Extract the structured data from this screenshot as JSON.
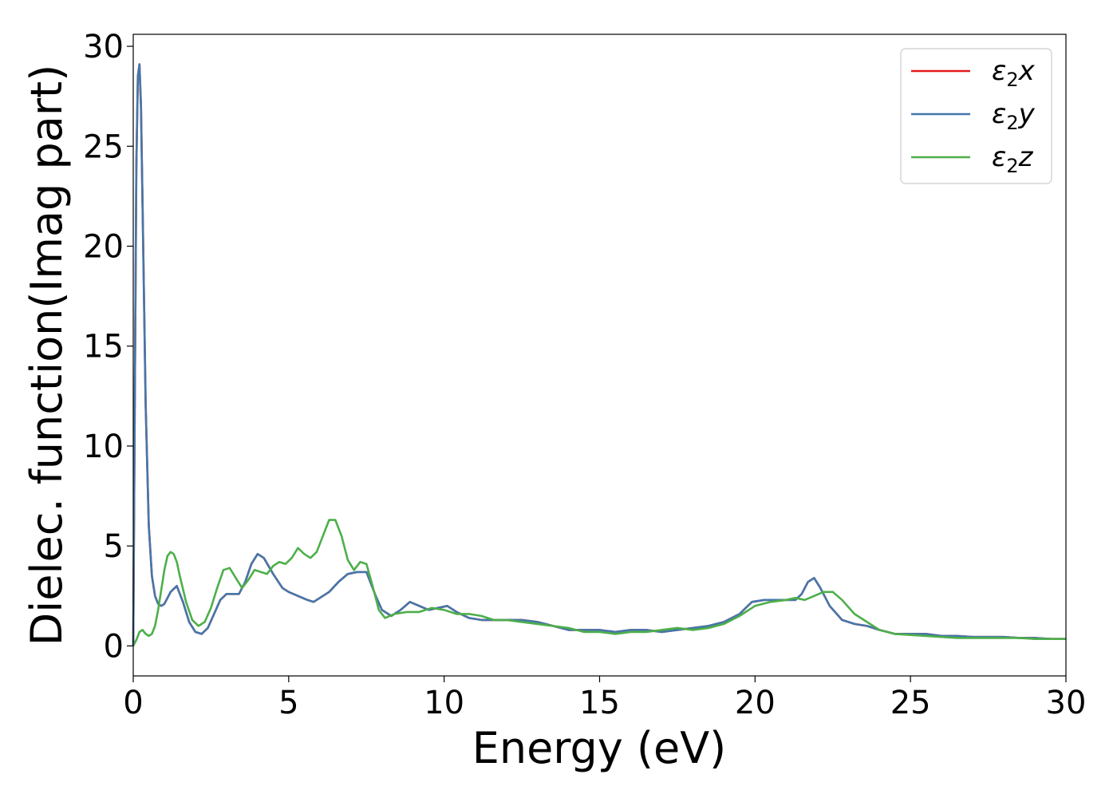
{
  "chart_data": {
    "type": "line",
    "title": "",
    "xlabel": "Energy (eV)",
    "ylabel": "Dielec. function(Imag part)",
    "xlim": [
      0,
      30
    ],
    "ylim": [
      -1.5,
      30.6
    ],
    "xticks": [
      0,
      5,
      10,
      15,
      20,
      25,
      30
    ],
    "yticks": [
      0,
      5,
      10,
      15,
      20,
      25,
      30
    ],
    "grid": false,
    "legend_position": "top-right",
    "series": [
      {
        "name": "ε₂x",
        "legend_base": "ε",
        "legend_sub": "2",
        "legend_axis": "x",
        "color": "#e41a1c",
        "x": [
          0,
          0.05,
          0.1,
          0.15,
          0.2,
          0.25,
          0.3,
          0.4,
          0.5,
          0.6,
          0.7,
          0.8,
          0.9,
          1.0,
          1.1,
          1.2,
          1.4,
          1.6,
          1.8,
          2.0,
          2.2,
          2.4,
          2.6,
          2.8,
          3.0,
          3.2,
          3.4,
          3.6,
          3.8,
          4.0,
          4.2,
          4.5,
          4.8,
          5.0,
          5.3,
          5.6,
          5.8,
          6.0,
          6.3,
          6.6,
          6.9,
          7.2,
          7.5,
          7.8,
          8.0,
          8.3,
          8.6,
          8.9,
          9.2,
          9.5,
          9.8,
          10.1,
          10.4,
          10.8,
          11.2,
          11.6,
          12.0,
          12.5,
          13.0,
          13.5,
          14.0,
          14.5,
          15.0,
          15.5,
          16.0,
          16.5,
          17.0,
          17.5,
          18.0,
          18.5,
          19.0,
          19.5,
          19.9,
          20.3,
          20.7,
          21.0,
          21.3,
          21.5,
          21.7,
          21.9,
          22.1,
          22.4,
          22.8,
          23.2,
          23.6,
          24.0,
          24.5,
          25.0,
          25.5,
          26.0,
          26.5,
          27.0,
          27.5,
          28.0,
          28.5,
          29.0,
          29.5,
          30.0
        ],
        "y": [
          0,
          12,
          24,
          28.5,
          29.1,
          27,
          22,
          12,
          6,
          3.5,
          2.5,
          2.1,
          2.0,
          2.1,
          2.4,
          2.7,
          3.0,
          2.2,
          1.2,
          0.7,
          0.6,
          0.9,
          1.6,
          2.3,
          2.6,
          2.6,
          2.6,
          3.2,
          4.1,
          4.6,
          4.4,
          3.6,
          2.9,
          2.7,
          2.5,
          2.3,
          2.2,
          2.4,
          2.7,
          3.2,
          3.6,
          3.7,
          3.7,
          2.5,
          1.8,
          1.5,
          1.8,
          2.2,
          2.0,
          1.8,
          1.9,
          2.0,
          1.7,
          1.4,
          1.3,
          1.3,
          1.3,
          1.3,
          1.2,
          1.0,
          0.8,
          0.8,
          0.8,
          0.7,
          0.8,
          0.8,
          0.7,
          0.8,
          0.9,
          1.0,
          1.2,
          1.6,
          2.2,
          2.3,
          2.3,
          2.3,
          2.3,
          2.6,
          3.2,
          3.4,
          2.9,
          2.0,
          1.3,
          1.1,
          1.0,
          0.8,
          0.6,
          0.6,
          0.6,
          0.5,
          0.5,
          0.45,
          0.45,
          0.45,
          0.4,
          0.4,
          0.35,
          0.35
        ]
      },
      {
        "name": "ε₂y",
        "legend_base": "ε",
        "legend_sub": "2",
        "legend_axis": "y",
        "color": "#4477aa",
        "x": [
          0,
          0.05,
          0.1,
          0.15,
          0.2,
          0.25,
          0.3,
          0.4,
          0.5,
          0.6,
          0.7,
          0.8,
          0.9,
          1.0,
          1.1,
          1.2,
          1.4,
          1.6,
          1.8,
          2.0,
          2.2,
          2.4,
          2.6,
          2.8,
          3.0,
          3.2,
          3.4,
          3.6,
          3.8,
          4.0,
          4.2,
          4.5,
          4.8,
          5.0,
          5.3,
          5.6,
          5.8,
          6.0,
          6.3,
          6.6,
          6.9,
          7.2,
          7.5,
          7.8,
          8.0,
          8.3,
          8.6,
          8.9,
          9.2,
          9.5,
          9.8,
          10.1,
          10.4,
          10.8,
          11.2,
          11.6,
          12.0,
          12.5,
          13.0,
          13.5,
          14.0,
          14.5,
          15.0,
          15.5,
          16.0,
          16.5,
          17.0,
          17.5,
          18.0,
          18.5,
          19.0,
          19.5,
          19.9,
          20.3,
          20.7,
          21.0,
          21.3,
          21.5,
          21.7,
          21.9,
          22.1,
          22.4,
          22.8,
          23.2,
          23.6,
          24.0,
          24.5,
          25.0,
          25.5,
          26.0,
          26.5,
          27.0,
          27.5,
          28.0,
          28.5,
          29.0,
          29.5,
          30.0
        ],
        "y": [
          0,
          12,
          24,
          28.5,
          29.1,
          27,
          22,
          12,
          6,
          3.5,
          2.5,
          2.1,
          2.0,
          2.1,
          2.4,
          2.7,
          3.0,
          2.2,
          1.2,
          0.7,
          0.6,
          0.9,
          1.6,
          2.3,
          2.6,
          2.6,
          2.6,
          3.2,
          4.1,
          4.6,
          4.4,
          3.6,
          2.9,
          2.7,
          2.5,
          2.3,
          2.2,
          2.4,
          2.7,
          3.2,
          3.6,
          3.7,
          3.7,
          2.5,
          1.8,
          1.5,
          1.8,
          2.2,
          2.0,
          1.8,
          1.9,
          2.0,
          1.7,
          1.4,
          1.3,
          1.3,
          1.3,
          1.3,
          1.2,
          1.0,
          0.8,
          0.8,
          0.8,
          0.7,
          0.8,
          0.8,
          0.7,
          0.8,
          0.9,
          1.0,
          1.2,
          1.6,
          2.2,
          2.3,
          2.3,
          2.3,
          2.3,
          2.6,
          3.2,
          3.4,
          2.9,
          2.0,
          1.3,
          1.1,
          1.0,
          0.8,
          0.6,
          0.6,
          0.6,
          0.5,
          0.5,
          0.45,
          0.45,
          0.45,
          0.4,
          0.4,
          0.35,
          0.35
        ]
      },
      {
        "name": "ε₂z",
        "legend_base": "ε",
        "legend_sub": "2",
        "legend_axis": "z",
        "color": "#4daf4a",
        "x": [
          0,
          0.1,
          0.2,
          0.3,
          0.4,
          0.5,
          0.6,
          0.7,
          0.8,
          0.9,
          1.0,
          1.1,
          1.2,
          1.3,
          1.4,
          1.5,
          1.7,
          1.9,
          2.1,
          2.3,
          2.5,
          2.7,
          2.9,
          3.1,
          3.3,
          3.5,
          3.7,
          3.9,
          4.1,
          4.3,
          4.5,
          4.7,
          4.9,
          5.1,
          5.3,
          5.5,
          5.7,
          5.9,
          6.1,
          6.3,
          6.5,
          6.7,
          6.9,
          7.1,
          7.3,
          7.5,
          7.7,
          7.9,
          8.1,
          8.4,
          8.8,
          9.2,
          9.6,
          10.0,
          10.4,
          10.8,
          11.2,
          11.6,
          12.0,
          12.5,
          13.0,
          13.5,
          14.0,
          14.5,
          15.0,
          15.5,
          16.0,
          16.5,
          17.0,
          17.5,
          18.0,
          18.5,
          19.0,
          19.5,
          20.0,
          20.5,
          21.0,
          21.3,
          21.6,
          21.9,
          22.2,
          22.5,
          22.8,
          23.2,
          23.6,
          24.0,
          24.5,
          25.0,
          25.5,
          26.0,
          26.5,
          27.0,
          27.5,
          28.0,
          28.5,
          29.0,
          29.5,
          30.0
        ],
        "y": [
          0,
          0.3,
          0.7,
          0.8,
          0.6,
          0.5,
          0.6,
          1.0,
          1.8,
          2.8,
          3.8,
          4.5,
          4.7,
          4.6,
          4.2,
          3.5,
          2.2,
          1.3,
          1.0,
          1.2,
          1.9,
          2.9,
          3.8,
          3.9,
          3.4,
          2.9,
          3.3,
          3.8,
          3.7,
          3.6,
          4.0,
          4.2,
          4.1,
          4.4,
          4.9,
          4.6,
          4.4,
          4.7,
          5.5,
          6.3,
          6.3,
          5.5,
          4.3,
          3.8,
          4.2,
          4.1,
          3.0,
          1.8,
          1.4,
          1.6,
          1.7,
          1.7,
          1.9,
          1.8,
          1.6,
          1.6,
          1.5,
          1.3,
          1.3,
          1.2,
          1.1,
          1.0,
          0.9,
          0.7,
          0.7,
          0.6,
          0.7,
          0.7,
          0.8,
          0.9,
          0.8,
          0.9,
          1.1,
          1.5,
          2.0,
          2.2,
          2.3,
          2.4,
          2.3,
          2.5,
          2.7,
          2.7,
          2.3,
          1.6,
          1.2,
          0.8,
          0.6,
          0.55,
          0.5,
          0.45,
          0.4,
          0.4,
          0.4,
          0.4,
          0.4,
          0.35,
          0.35,
          0.35
        ]
      }
    ]
  }
}
